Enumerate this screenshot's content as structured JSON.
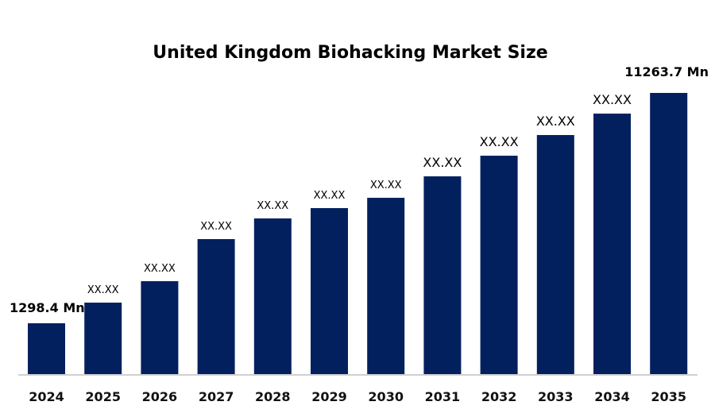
{
  "chart_data": {
    "type": "bar",
    "title": "United Kingdom Biohacking Market Size",
    "xlabel": "",
    "ylabel": "",
    "categories": [
      "2024",
      "2025",
      "2026",
      "2027",
      "2028",
      "2029",
      "2030",
      "2031",
      "2032",
      "2033",
      "2034",
      "2035"
    ],
    "values": [
      1298.4,
      2192,
      3119,
      4940,
      5834,
      6281,
      6727,
      7655,
      8548,
      9442,
      10369,
      11263.7
    ],
    "data_labels": [
      "1298.4 Mn",
      "XX.XX",
      "XX.XX",
      "XX.XX",
      "XX.XX",
      "XX.XX",
      "XX.XX",
      "XX.XX",
      "XX.XX",
      "XX.XX",
      "XX.XX",
      "11263.7 Mn"
    ],
    "grid": false,
    "legend": "none",
    "bar_color": "#03205E",
    "axis_line_color": "#D0D0D0"
  }
}
